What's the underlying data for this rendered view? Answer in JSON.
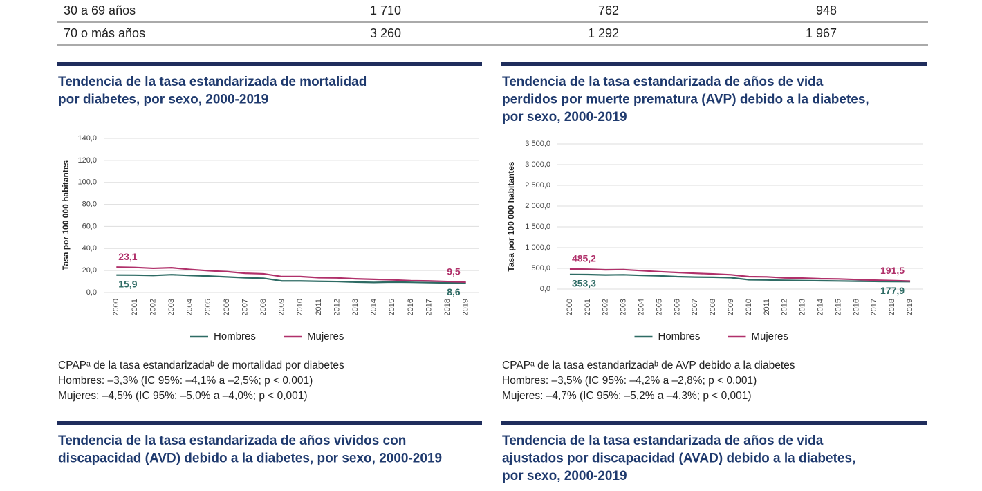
{
  "table": {
    "rows": [
      [
        "30 a 69 años",
        "1 710",
        "762",
        "948"
      ],
      [
        "70 o más años",
        "3 260",
        "1 292",
        "1 967"
      ]
    ]
  },
  "chart_data": [
    {
      "type": "line",
      "title": [
        "Tendencia de la tasa estandarizada de mortalidad",
        "por diabetes, por sexo, 2000-2019"
      ],
      "y_label": "Tasa por 100 000 habitantes",
      "categories": [
        "2000",
        "2001",
        "2002",
        "2003",
        "2004",
        "2005",
        "2006",
        "2007",
        "2008",
        "2009",
        "2010",
        "2011",
        "2012",
        "2013",
        "2014",
        "2015",
        "2016",
        "2017",
        "2018",
        "2019"
      ],
      "series": [
        {
          "name": "Hombres",
          "color": "#2e6b64",
          "values": [
            15.9,
            15.8,
            15.5,
            16.2,
            15.5,
            15.0,
            14.2,
            13.4,
            13.0,
            10.5,
            10.5,
            10.2,
            10.0,
            9.5,
            9.2,
            9.5,
            9.3,
            9.0,
            8.8,
            8.6
          ],
          "value_labels": [
            "15,9",
            null,
            null,
            null,
            null,
            null,
            null,
            null,
            null,
            null,
            null,
            null,
            null,
            null,
            null,
            null,
            null,
            null,
            null,
            "8,6"
          ]
        },
        {
          "name": "Mujeres",
          "color": "#b0306a",
          "values": [
            23.1,
            22.8,
            22.0,
            22.5,
            21.0,
            19.8,
            19.0,
            17.5,
            17.0,
            14.5,
            14.5,
            13.5,
            13.3,
            12.5,
            12.0,
            11.5,
            10.8,
            10.5,
            10.0,
            9.5
          ],
          "value_labels": [
            "23,1",
            null,
            null,
            null,
            null,
            null,
            null,
            null,
            null,
            null,
            null,
            null,
            null,
            null,
            null,
            null,
            null,
            null,
            null,
            "9,5"
          ]
        }
      ],
      "ylim": [
        0,
        140
      ],
      "yticks": [
        {
          "value": 0,
          "label": "0,0"
        },
        {
          "value": 20,
          "label": "20,0"
        },
        {
          "value": 40,
          "label": "40,0"
        },
        {
          "value": 60,
          "label": "60,0"
        },
        {
          "value": 80,
          "label": "80,0"
        },
        {
          "value": 100,
          "label": "100,0"
        },
        {
          "value": 120,
          "label": "120,0"
        },
        {
          "value": 140,
          "label": "140,0"
        }
      ],
      "grid": true,
      "notes": [
        "CPAPᵃ de la tasa estandarizadaᵇ de mortalidad por diabetes",
        "Hombres: –3,3% (IC 95%: –4,1% a –2,5%; p < 0,001)",
        "Mujeres:  –4,5% (IC 95%: –5,0% a –4,0%; p < 0,001)"
      ]
    },
    {
      "type": "line",
      "title": [
        "Tendencia de la tasa estandarizada de años de vida",
        "perdidos por muerte prematura (AVP) debido a la diabetes,",
        "por sexo, 2000-2019"
      ],
      "y_label": "Tasa por 100 000 habitantes",
      "categories": [
        "2000",
        "2001",
        "2002",
        "2003",
        "2004",
        "2005",
        "2006",
        "2007",
        "2008",
        "2009",
        "2010",
        "2011",
        "2012",
        "2013",
        "2014",
        "2015",
        "2016",
        "2017",
        "2018",
        "2019"
      ],
      "series": [
        {
          "name": "Hombres",
          "color": "#2e6b64",
          "values": [
            353.3,
            350,
            340,
            345,
            330,
            320,
            300,
            290,
            285,
            275,
            225,
            220,
            210,
            205,
            200,
            195,
            190,
            185,
            180,
            177.9
          ],
          "value_labels": [
            "353,3",
            null,
            null,
            null,
            null,
            null,
            null,
            null,
            null,
            null,
            null,
            null,
            null,
            null,
            null,
            null,
            null,
            null,
            null,
            "177,9"
          ]
        },
        {
          "name": "Mujeres",
          "color": "#b0306a",
          "values": [
            485.2,
            480,
            465,
            470,
            445,
            420,
            400,
            380,
            365,
            345,
            300,
            295,
            270,
            265,
            250,
            245,
            230,
            215,
            205,
            191.5
          ],
          "value_labels": [
            "485,2",
            null,
            null,
            null,
            null,
            null,
            null,
            null,
            null,
            null,
            null,
            null,
            null,
            null,
            null,
            null,
            null,
            null,
            null,
            "191,5"
          ]
        }
      ],
      "ylim": [
        0,
        3500
      ],
      "yticks": [
        {
          "value": 0,
          "label": "0,0"
        },
        {
          "value": 500,
          "label": "500,0"
        },
        {
          "value": 1000,
          "label": "1 000,0"
        },
        {
          "value": 1500,
          "label": "1 500,0"
        },
        {
          "value": 2000,
          "label": "2 000,0"
        },
        {
          "value": 2500,
          "label": "2 500,0"
        },
        {
          "value": 3000,
          "label": "3 000,0"
        },
        {
          "value": 3500,
          "label": "3 500,0"
        }
      ],
      "grid": true,
      "notes": [
        "CPAPᵃ de la tasa estandarizadaᵇ de AVP debido a la diabetes",
        "Hombres: –3,5% (IC 95%: –4,2% a –2,8%; p < 0,001)",
        "Mujeres:  –4,7% (IC 95%: –5,2% a –4,3%; p < 0,001)"
      ]
    }
  ],
  "next_titles": [
    [
      "Tendencia de la tasa estandarizada de años vividos con",
      "discapacidad (AVD) debido a la diabetes, por sexo, 2000-2019"
    ],
    [
      "Tendencia de la tasa estandarizada de años de vida",
      "ajustados por discapacidad (AVAD) debido a la diabetes,",
      "por sexo, 2000-2019"
    ]
  ]
}
